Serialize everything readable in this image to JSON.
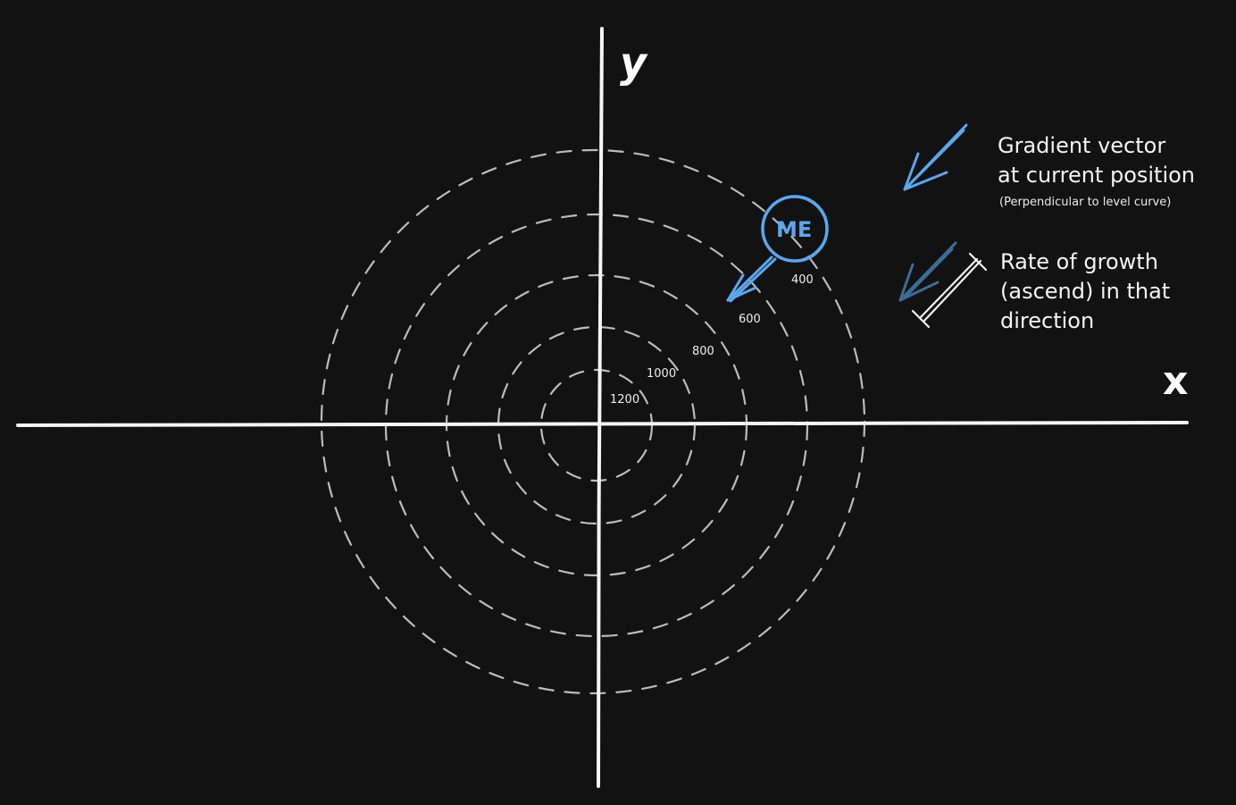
{
  "axes": {
    "x_label": "x",
    "y_label": "y"
  },
  "level_curves": [
    {
      "label": "1200"
    },
    {
      "label": "1000"
    },
    {
      "label": "800"
    },
    {
      "label": "600"
    },
    {
      "label": "400"
    },
    {
      "label": ""
    }
  ],
  "marker": {
    "label": "ME"
  },
  "legend": {
    "gradient": {
      "line1": "Gradient vector",
      "line2": "at current position",
      "note": "(Perpendicular to level curve)"
    },
    "rate": {
      "line1": "Rate of growth",
      "line2": "(ascend) in that",
      "line3": "direction"
    }
  },
  "colors": {
    "background": "#121212",
    "axis": "#f5f5f5",
    "contour": "#b9bcc0",
    "gradient_arrow": "#5aa7ee",
    "rate_arrow": "#3d6c96",
    "text": "#f2f2f2"
  }
}
